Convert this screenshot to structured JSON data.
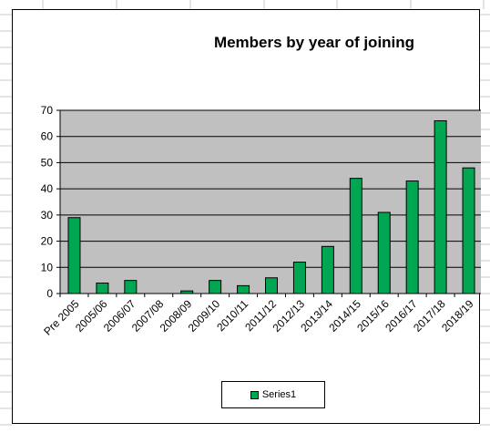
{
  "chart_data": {
    "type": "bar",
    "title": "Members by year of joining",
    "xlabel": "",
    "ylabel": "",
    "categories": [
      "Pre 2005",
      "2005/06",
      "2006/07",
      "2007/08",
      "2008/09",
      "2009/10",
      "2010/11",
      "2011/12",
      "2012/13",
      "2013/14",
      "2014/15",
      "2015/16",
      "2016/17",
      "2017/18",
      "2018/19"
    ],
    "series": [
      {
        "name": "Series1",
        "values": [
          29,
          4,
          5,
          0,
          1,
          5,
          3,
          6,
          12,
          18,
          44,
          31,
          43,
          66,
          48
        ]
      }
    ],
    "ylim": [
      0,
      70
    ],
    "yticks": [
      0,
      10,
      20,
      30,
      40,
      50,
      60,
      70
    ],
    "grid": true,
    "legend": "bottom",
    "colors": {
      "bar": "#00a651",
      "plot_bg": "#c0c0c0",
      "gridline": "#000000"
    }
  }
}
